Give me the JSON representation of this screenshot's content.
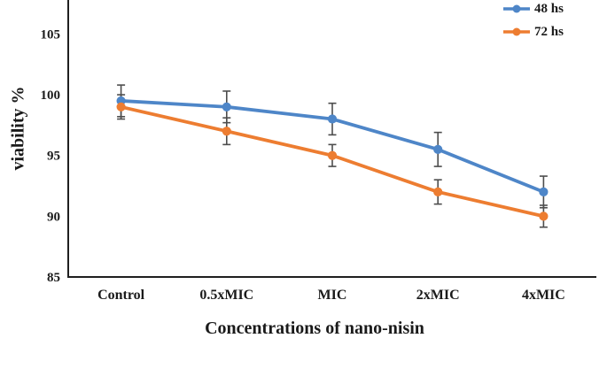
{
  "chart_data": {
    "type": "line",
    "categories": [
      "Control",
      "0.5xMIC",
      "MIC",
      "2xMIC",
      "4xMIC"
    ],
    "series": [
      {
        "name": "48 hs",
        "color": "#4E86C8",
        "values": [
          99.5,
          99,
          98,
          95.5,
          92
        ],
        "error_bars": [
          1.3,
          1.3,
          1.3,
          1.4,
          1.3
        ]
      },
      {
        "name": "72 hs",
        "color": "#ED7D31",
        "values": [
          99,
          97,
          95,
          92,
          90
        ],
        "error_bars": [
          1.0,
          1.1,
          0.9,
          1.0,
          0.9
        ]
      }
    ],
    "xlabel": "Concentrations of nano-nisin",
    "ylabel": "viability %",
    "ylim": [
      85,
      107.8
    ],
    "yticks": [
      85,
      90,
      95,
      100,
      105
    ],
    "grid": false,
    "marker": "circle",
    "legend_position": "top-right",
    "error_bar_color": "#4d4d4d",
    "axis_color": "#1f1f1f",
    "background_color": "#ffffff"
  }
}
